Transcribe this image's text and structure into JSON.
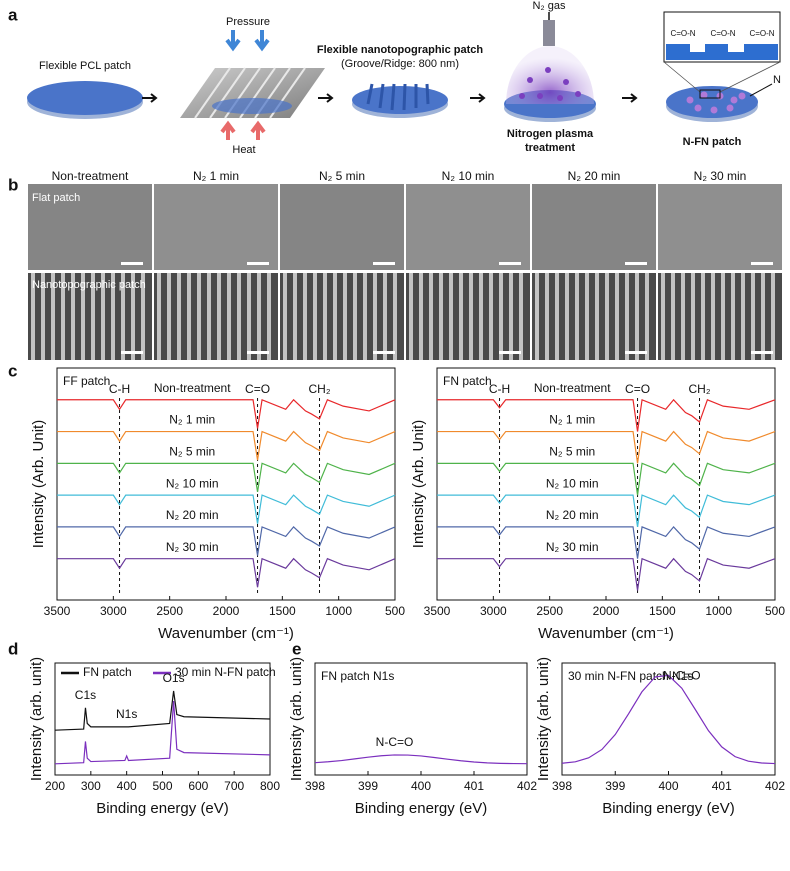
{
  "panel_labels": [
    "a",
    "b",
    "c",
    "d",
    "e"
  ],
  "panel_a": {
    "step1": "Flexible PCL patch",
    "pressure": "Pressure",
    "heat": "Heat",
    "step2_title": "Flexible nanotopographic patch",
    "step2_sub": "(Groove/Ridge: 800 nm)",
    "gas": "N₂ gas",
    "step3": [
      "Nitrogen plasma",
      "treatment"
    ],
    "step4": "N-FN patch",
    "inset_labels": [
      "C=O-N",
      "C=O-N",
      "C=O-N"
    ],
    "n_label": "N"
  },
  "panel_b": {
    "columns": [
      "Non-treatment",
      "N₂ 1 min",
      "N₂ 5 min",
      "N₂ 10 min",
      "N₂ 20 min",
      "N₂ 30 min"
    ],
    "rows": [
      "Flat patch",
      "Nanotopographic patch"
    ]
  },
  "chart_data": [
    {
      "type": "line",
      "title": "FF patch",
      "x_label": "Wavenumber (cm⁻¹)",
      "y_label": "Intensity (Arb. Unit)",
      "xlim": [
        3500,
        500
      ],
      "xticks": [
        3500,
        3000,
        2500,
        2000,
        1500,
        1000,
        500
      ],
      "ylim": [
        -0.3,
        7
      ],
      "markers": [
        {
          "label": "C-H",
          "x": 2945
        },
        {
          "label": "C=O",
          "x": 1720
        },
        {
          "label": "CH₂",
          "x": 1170
        }
      ],
      "x": [
        3500,
        3000,
        2945,
        2890,
        1800,
        1760,
        1720,
        1680,
        1470,
        1400,
        1295,
        1240,
        1170,
        1100,
        960,
        730,
        500
      ],
      "series": [
        {
          "name": "Non-treatment",
          "color": "#e8282b",
          "values": [
            6,
            6,
            5.7,
            6,
            6,
            6,
            5.1,
            6,
            5.7,
            6,
            5.65,
            5.55,
            5.4,
            6,
            5.8,
            5.65,
            6
          ]
        },
        {
          "name": "N₂ 1 min",
          "color": "#f08a2c",
          "values": [
            5,
            5,
            4.7,
            5,
            5,
            5,
            4.1,
            5,
            4.7,
            5,
            4.65,
            4.55,
            4.4,
            5,
            4.8,
            4.65,
            5
          ]
        },
        {
          "name": "N₂ 5 min",
          "color": "#4fb34a",
          "values": [
            4,
            4,
            3.7,
            4,
            4,
            4,
            3.1,
            4,
            3.7,
            4,
            3.65,
            3.55,
            3.4,
            4,
            3.8,
            3.65,
            4
          ]
        },
        {
          "name": "N₂ 10 min",
          "color": "#40bcd8",
          "values": [
            3,
            3,
            2.7,
            3,
            3,
            3,
            2.1,
            3,
            2.7,
            3,
            2.65,
            2.55,
            2.4,
            3,
            2.8,
            2.65,
            3
          ]
        },
        {
          "name": "N₂ 20 min",
          "color": "#5068a8",
          "values": [
            2,
            2,
            1.7,
            2,
            2,
            2,
            1.1,
            2,
            1.7,
            2,
            1.65,
            1.55,
            1.4,
            2,
            1.8,
            1.65,
            2
          ]
        },
        {
          "name": "N₂ 30 min",
          "color": "#6a3a9c",
          "values": [
            1,
            1,
            0.7,
            1,
            1,
            1,
            0.1,
            1,
            0.7,
            1,
            0.65,
            0.55,
            0.4,
            1,
            0.8,
            0.65,
            1
          ]
        }
      ]
    },
    {
      "type": "line",
      "title": "FN patch",
      "x_label": "Wavenumber (cm⁻¹)",
      "y_label": "Intensity (Arb. Unit)",
      "xlim": [
        3500,
        500
      ],
      "xticks": [
        3500,
        3000,
        2500,
        2000,
        1500,
        1000,
        500
      ],
      "ylim": [
        -0.3,
        7
      ],
      "markers": [
        {
          "label": "C-H",
          "x": 2945
        },
        {
          "label": "C=O",
          "x": 1720
        },
        {
          "label": "CH₂",
          "x": 1170
        }
      ],
      "x": [
        3500,
        3000,
        2945,
        2890,
        1800,
        1760,
        1720,
        1680,
        1470,
        1400,
        1295,
        1240,
        1170,
        1100,
        960,
        730,
        500
      ],
      "series": [
        {
          "name": "Non-treatment",
          "color": "#e8282b",
          "values": [
            6,
            6,
            5.75,
            6,
            6,
            6,
            5.0,
            6,
            5.7,
            6,
            5.6,
            5.5,
            5.3,
            6,
            5.8,
            5.7,
            6
          ]
        },
        {
          "name": "N₂ 1 min",
          "color": "#f08a2c",
          "values": [
            5,
            5,
            4.75,
            5,
            5,
            5,
            4.0,
            5,
            4.7,
            5,
            4.6,
            4.5,
            4.3,
            5,
            4.8,
            4.7,
            5
          ]
        },
        {
          "name": "N₂ 5 min",
          "color": "#4fb34a",
          "values": [
            4,
            4,
            3.75,
            4,
            4,
            4,
            3.0,
            4,
            3.7,
            4,
            3.6,
            3.5,
            3.3,
            4,
            3.8,
            3.7,
            4
          ]
        },
        {
          "name": "N₂ 10 min",
          "color": "#40bcd8",
          "values": [
            3,
            3,
            2.75,
            3,
            3,
            3,
            2.0,
            3,
            2.7,
            3,
            2.6,
            2.5,
            2.3,
            3,
            2.8,
            2.7,
            3
          ]
        },
        {
          "name": "N₂ 20 min",
          "color": "#5068a8",
          "values": [
            2,
            2,
            1.75,
            2,
            2,
            2,
            1.0,
            2,
            1.7,
            2,
            1.6,
            1.5,
            1.3,
            2,
            1.8,
            1.7,
            2
          ]
        },
        {
          "name": "N₂ 30 min",
          "color": "#6a3a9c",
          "values": [
            1,
            1,
            0.75,
            1,
            1,
            1,
            0.0,
            1,
            0.7,
            1,
            0.6,
            0.5,
            0.3,
            1,
            0.8,
            0.7,
            1
          ]
        }
      ]
    },
    {
      "type": "line",
      "x_label": "Binding energy (eV)",
      "y_label": "Intensity (arb. unit)",
      "xlim": [
        200,
        800
      ],
      "xticks": [
        200,
        300,
        400,
        500,
        600,
        700,
        800
      ],
      "ylim": [
        0,
        10
      ],
      "legend": "top",
      "peak_labels": [
        {
          "label": "C1s",
          "x": 285
        },
        {
          "label": "N1s",
          "x": 400
        },
        {
          "label": "O1s",
          "x": 531
        }
      ],
      "x": [
        200,
        280,
        285,
        290,
        300,
        395,
        400,
        405,
        520,
        531,
        540,
        560,
        800
      ],
      "series": [
        {
          "name": "FN patch",
          "color": "#111111",
          "values": [
            4.0,
            4.1,
            6.0,
            4.6,
            4.3,
            4.3,
            4.3,
            4.3,
            4.6,
            7.5,
            5.4,
            5.2,
            5.0
          ]
        },
        {
          "name": "30 min N-FN patch",
          "color": "#7b2fbe",
          "values": [
            1.0,
            1.1,
            3.0,
            1.5,
            1.2,
            1.3,
            1.7,
            1.3,
            1.5,
            6.6,
            2.3,
            2.0,
            1.8
          ]
        }
      ]
    },
    {
      "type": "line",
      "title": "FN patch N1s",
      "x_label": "Binding energy (eV)",
      "y_label": "Intensity (arb. unit)",
      "xlim": [
        398,
        402
      ],
      "xticks": [
        398,
        399,
        400,
        401,
        402
      ],
      "ylim": [
        0,
        10
      ],
      "peak_labels": [
        {
          "label": "N-C=O",
          "x": 399.5
        }
      ],
      "x": [
        398,
        398.25,
        398.5,
        398.75,
        399,
        399.25,
        399.5,
        399.75,
        400,
        400.25,
        400.5,
        400.75,
        401,
        401.25,
        401.5,
        401.75,
        402
      ],
      "series": [
        {
          "name": "FN patch N1s",
          "color": "#7b2fbe",
          "values": [
            1.1,
            1.18,
            1.29,
            1.44,
            1.59,
            1.72,
            1.79,
            1.78,
            1.7,
            1.56,
            1.41,
            1.27,
            1.16,
            1.08,
            1.04,
            1.02,
            1.01
          ]
        }
      ]
    },
    {
      "type": "line",
      "title": "30 min N-FN patch N1s",
      "x_label": "Binding energy (eV)",
      "y_label": "Intensity (arb. unit)",
      "xlim": [
        398,
        402
      ],
      "xticks": [
        398,
        399,
        400,
        401,
        402
      ],
      "ylim": [
        0,
        10
      ],
      "peak_labels": [
        {
          "label": "N-C=O",
          "x": 400.25
        }
      ],
      "x": [
        398,
        398.25,
        398.5,
        398.75,
        399,
        399.25,
        399.5,
        399.75,
        400,
        400.25,
        400.5,
        400.75,
        401,
        401.25,
        401.5,
        401.75,
        402
      ],
      "series": [
        {
          "name": "30 min N-FN patch N1s",
          "color": "#7b2fbe",
          "values": [
            1.05,
            1.18,
            1.53,
            2.28,
            3.61,
            5.46,
            7.42,
            8.76,
            8.89,
            7.75,
            5.87,
            3.96,
            2.51,
            1.64,
            1.23,
            1.07,
            1.02
          ]
        }
      ]
    }
  ]
}
